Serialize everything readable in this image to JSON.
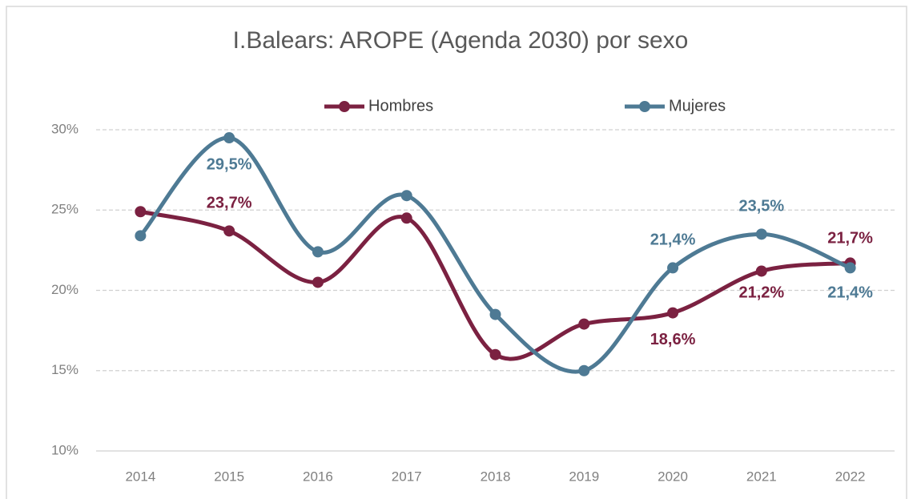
{
  "chart_data": {
    "type": "line",
    "title": "I.Balears: AROPE (Agenda 2030) por sexo",
    "categories": [
      "2014",
      "2015",
      "2016",
      "2017",
      "2018",
      "2019",
      "2020",
      "2021",
      "2022"
    ],
    "series": [
      {
        "name": "Hombres",
        "color": "#7b2141",
        "values": [
          24.9,
          23.7,
          20.5,
          24.5,
          16.0,
          17.9,
          18.6,
          21.2,
          21.7
        ],
        "value_labels": [
          null,
          "23,7%",
          null,
          null,
          null,
          null,
          "18,6%",
          "21,2%",
          "21,7%"
        ]
      },
      {
        "name": "Mujeres",
        "color": "#4e7a94",
        "values": [
          23.4,
          29.5,
          22.4,
          25.9,
          18.5,
          15.0,
          21.4,
          23.5,
          21.4
        ],
        "value_labels": [
          null,
          "29,5%",
          null,
          null,
          null,
          null,
          "21,4%",
          "23,5%",
          "21,4%"
        ]
      }
    ],
    "ylim": [
      10,
      30
    ],
    "yticks": [
      {
        "value": 10,
        "label": "10%"
      },
      {
        "value": 15,
        "label": "15%"
      },
      {
        "value": 20,
        "label": "20%"
      },
      {
        "value": 25,
        "label": "25%"
      },
      {
        "value": 30,
        "label": "30%"
      }
    ],
    "grid": true,
    "smooth": true
  }
}
